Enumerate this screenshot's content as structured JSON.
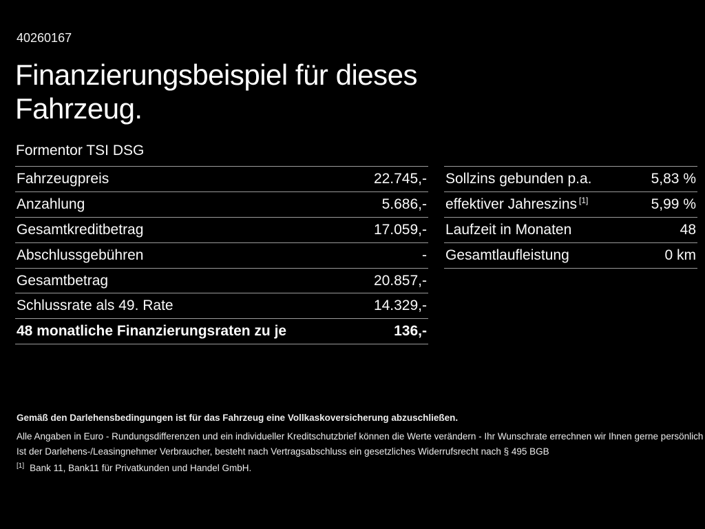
{
  "page": {
    "vehicle_id": "40260167",
    "title_line1": "Finanzierungsbeispiel für dieses",
    "title_line2": "Fahrzeug.",
    "model": "Formentor TSI DSG"
  },
  "left_table": {
    "rows": [
      {
        "label": "Fahrzeugpreis",
        "value": "22.745,-"
      },
      {
        "label": "Anzahlung",
        "value": "5.686,-"
      },
      {
        "label": "Gesamtkreditbetrag",
        "value": "17.059,-"
      },
      {
        "label": "Abschlussgebühren",
        "value": "-"
      },
      {
        "label": "Gesamtbetrag",
        "value": "20.857,-"
      },
      {
        "label": "Schlussrate als 49. Rate",
        "value": "14.329,-"
      },
      {
        "label": "48 monatliche Finanzierungsraten zu je",
        "value": "136,-"
      }
    ]
  },
  "right_table": {
    "rows": [
      {
        "label": "Sollzins gebunden p.a.",
        "value": "5,83 %"
      },
      {
        "label": "effektiver Jahreszins",
        "footnote_marker": "[1]",
        "value": "5,99 %"
      },
      {
        "label": "Laufzeit in Monaten",
        "value": "48"
      },
      {
        "label": "Gesamtlaufleistung",
        "value": "0 km"
      }
    ]
  },
  "footer": {
    "line1": "Gemäß den Darlehensbedingungen ist für das Fahrzeug eine Vollkaskoversicherung abzuschließen.",
    "line2": "Alle Angaben in Euro - Rundungsdifferenzen und ein individueller Kreditschutzbrief können die Werte verändern - Ihr Wunschrate errechnen wir Ihnen gerne persönlich",
    "line3": "Ist der Darlehens-/Leasingnehmer Verbraucher, besteht nach Vertragsabschluss ein gesetzliches Widerrufsrecht nach § 495 BGB",
    "footnote_marker": "[1]",
    "footnote_text": "Bank 11, Bank11 für Privatkunden und Handel GmbH."
  },
  "colors": {
    "background": "#000000",
    "text": "#ffffff",
    "divider": "#9c9c9c"
  }
}
